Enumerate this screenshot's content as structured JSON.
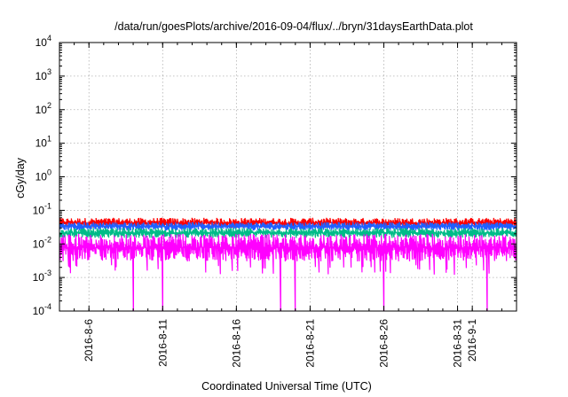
{
  "chart_data": {
    "type": "line",
    "title": "/data/run/goesPlots/archive/2016-09-04/flux/../bryn/31daysEarthData.plot",
    "xlabel": "Coordinated Universal Time (UTC)",
    "ylabel": "cGy/day",
    "y_scale": "log",
    "ylim": [
      0.0001,
      10000
    ],
    "y_ticks": [
      {
        "value": 0.0001,
        "base": "10",
        "exp": "-4"
      },
      {
        "value": 0.001,
        "base": "10",
        "exp": "-3"
      },
      {
        "value": 0.01,
        "base": "10",
        "exp": "-2"
      },
      {
        "value": 0.1,
        "base": "10",
        "exp": "-1"
      },
      {
        "value": 1,
        "base": "10",
        "exp": "0"
      },
      {
        "value": 10,
        "base": "10",
        "exp": "1"
      },
      {
        "value": 100,
        "base": "10",
        "exp": "2"
      },
      {
        "value": 1000,
        "base": "10",
        "exp": "3"
      },
      {
        "value": 10000,
        "base": "10",
        "exp": "4"
      }
    ],
    "xlim": [
      "2016-08-04",
      "2016-09-04"
    ],
    "x_ticks": [
      "2016-8-6",
      "2016-8-11",
      "2016-8-16",
      "2016-8-21",
      "2016-8-26",
      "2016-8-31",
      "2016-9-1"
    ],
    "grid": true,
    "series": [
      {
        "color": "#ff0000",
        "typical_range": [
          0.03,
          0.06
        ]
      },
      {
        "color": "#2060ff",
        "typical_range": [
          0.025,
          0.045
        ]
      },
      {
        "color": "#00bb88",
        "typical_range": [
          0.015,
          0.03
        ]
      },
      {
        "color": "#ff00ff",
        "typical_range": [
          0.003,
          0.02
        ]
      }
    ],
    "dropouts": [
      "2016-08-09",
      "2016-08-11",
      "2016-08-19",
      "2016-08-20",
      "2016-08-26",
      "2016-09-02"
    ]
  }
}
